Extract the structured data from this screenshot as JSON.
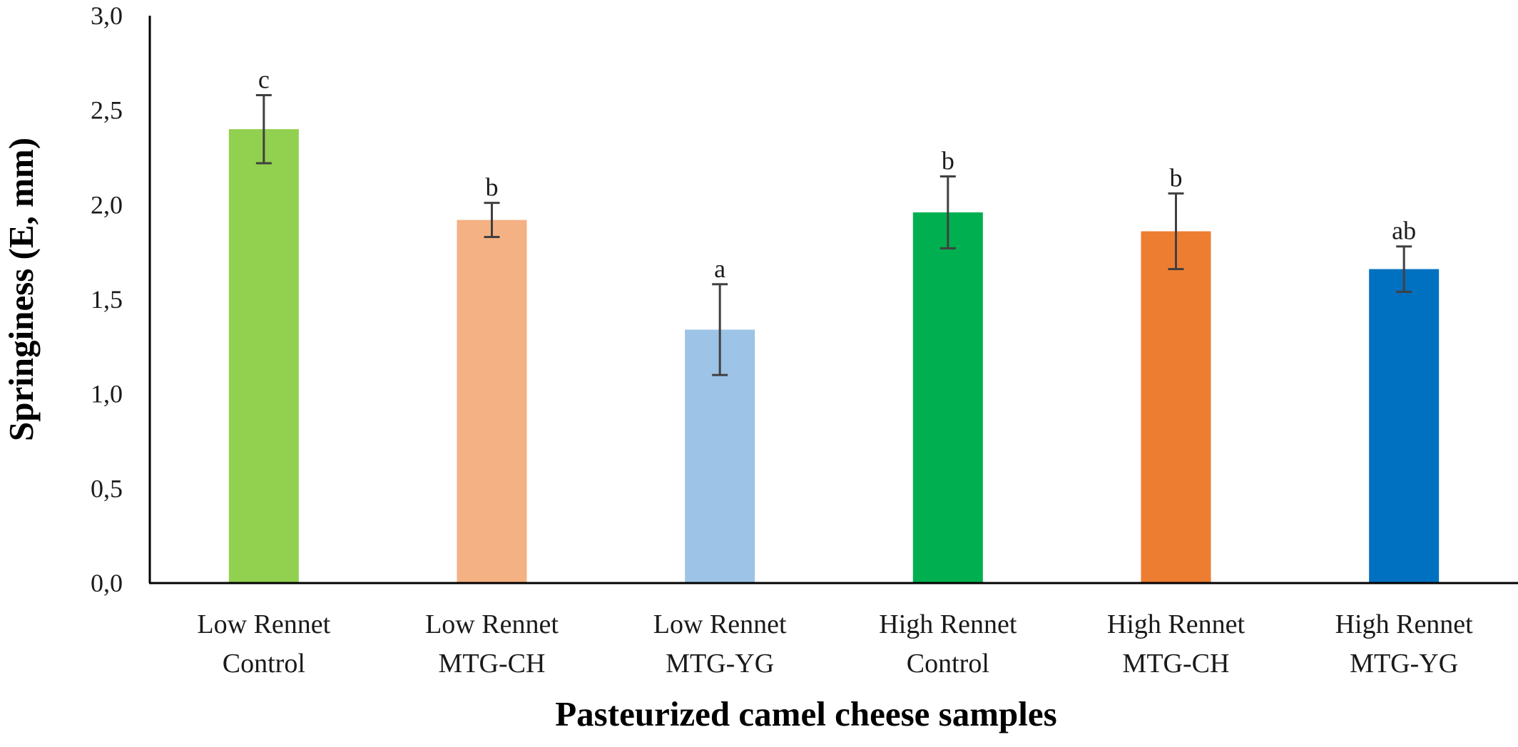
{
  "chart_data": {
    "type": "bar",
    "title": "",
    "xlabel": "Pasteurized camel cheese samples",
    "ylabel": "Springiness (E, mm)",
    "ylim": [
      0,
      3
    ],
    "yticks": [
      0,
      0.5,
      1,
      1.5,
      2,
      2.5,
      3
    ],
    "ytick_labels": [
      "0,0",
      "0,5",
      "1,0",
      "1,5",
      "2,0",
      "2,5",
      "3,0"
    ],
    "grid": false,
    "legend": "none",
    "categories": [
      [
        "Low Rennet",
        "Control"
      ],
      [
        "Low Rennet",
        "MTG-CH"
      ],
      [
        "Low Rennet",
        "MTG-YG"
      ],
      [
        "High Rennet",
        "Control"
      ],
      [
        "High Rennet",
        "MTG-CH"
      ],
      [
        "High Rennet",
        "MTG-YG"
      ]
    ],
    "values": [
      2.4,
      1.92,
      1.34,
      1.96,
      1.86,
      1.66
    ],
    "errors": [
      0.18,
      0.09,
      0.24,
      0.19,
      0.2,
      0.12
    ],
    "significance_labels": [
      "c",
      "b",
      "a",
      "b",
      "b",
      "ab"
    ],
    "colors": [
      "#92d050",
      "#f4b183",
      "#9dc3e6",
      "#00b050",
      "#ed7d31",
      "#0070c0"
    ]
  }
}
